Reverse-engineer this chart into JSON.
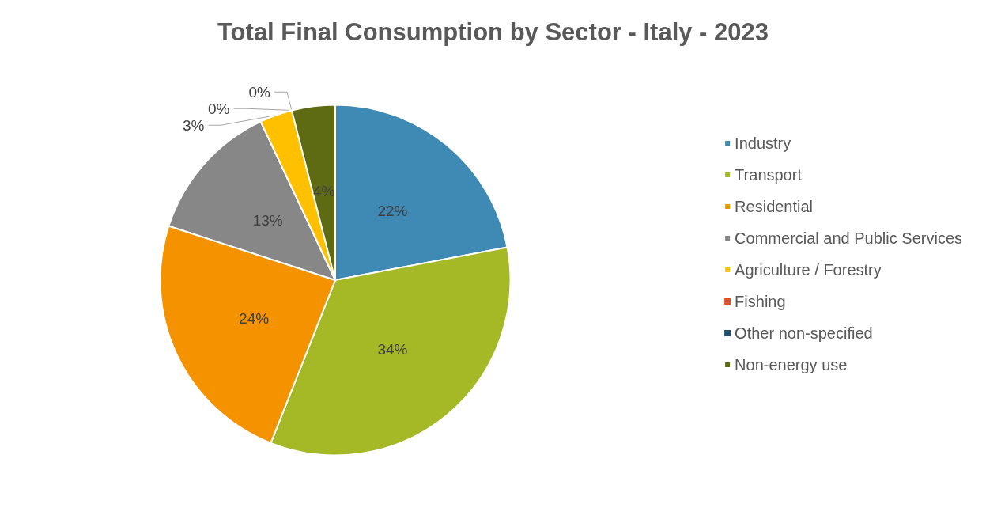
{
  "chart_data": {
    "type": "pie",
    "title": "Total Final Consumption by Sector - Italy - 2023",
    "categories": [
      "Industry",
      "Transport",
      "Residential",
      "Commercial and Public Services",
      "Agriculture / Forestry",
      "Fishing",
      "Other non-specified",
      "Non-energy use"
    ],
    "values": [
      22,
      34,
      24,
      13,
      3,
      0,
      0,
      4
    ],
    "value_labels": [
      "22%",
      "34%",
      "24%",
      "13%",
      "3%",
      "0%",
      "0%",
      "4%"
    ],
    "colors": [
      "#3e8ab5",
      "#a5b826",
      "#f59200",
      "#878787",
      "#ffc000",
      "#e0502a",
      "#1f4e6b",
      "#5e6b12"
    ],
    "legend": "right"
  }
}
